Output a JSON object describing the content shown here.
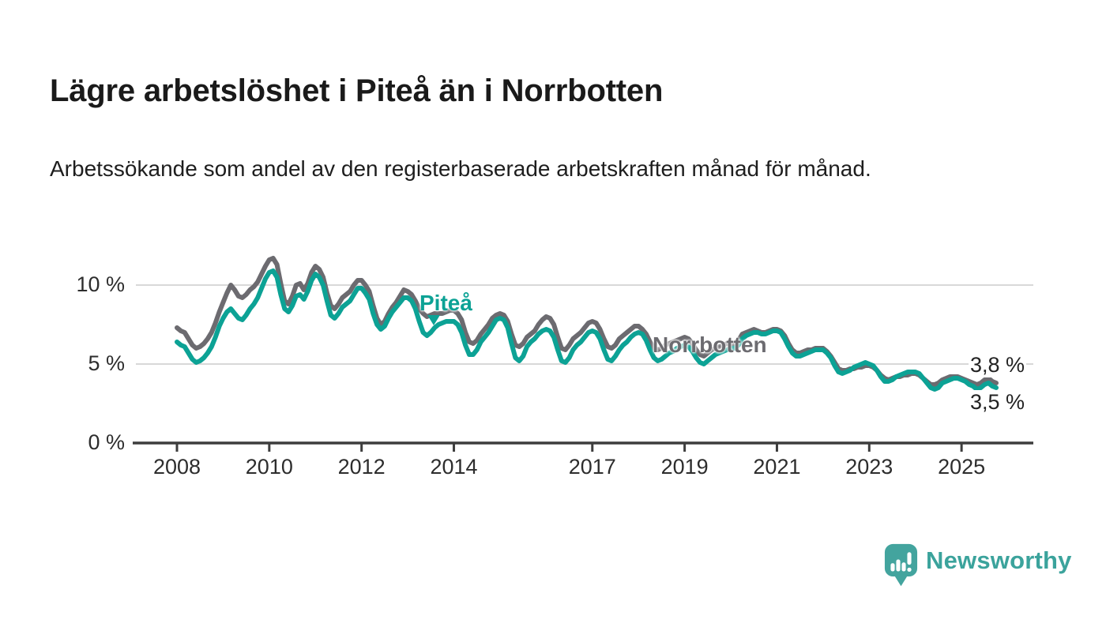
{
  "title": "Lägre arbetslöshet i Piteå än i Norrbotten",
  "subtitle": "Arbetssökande som andel av den registerbaserade arbetskraften månad för månad.",
  "annotations": {
    "pitea_label": "Piteå",
    "norrbotten_label": "Norrbotten",
    "end_label_norrbotten": "3,8 %",
    "end_label_pitea": "3,5 %"
  },
  "footer": {
    "brand": "Newsworthy"
  },
  "colors": {
    "pitea": "#0ca295",
    "norrbotten": "#6c6b70",
    "gridline": "#d8d8d8",
    "axis": "#3d3d3d",
    "logo": "#43a49e"
  },
  "chart_data": {
    "type": "line",
    "title": "Lägre arbetslöshet i Piteå än i Norrbotten",
    "xlabel": "",
    "ylabel": "Arbetssökande som andel av den registerbaserade arbetskraften",
    "unit": "%",
    "frequency": "monthly",
    "x_start": "2008-01",
    "x_end": "2025-10",
    "ylim": [
      0,
      12.5
    ],
    "grid": "horizontal",
    "legend_position": "inline-labels",
    "y_axis": {
      "ticks": [
        {
          "label": "0 %",
          "value": 0
        },
        {
          "label": "5 %",
          "value": 5
        },
        {
          "label": "10 %",
          "value": 10
        }
      ]
    },
    "x_axis": {
      "tick_years": [
        2008,
        2010,
        2012,
        2014,
        2017,
        2019,
        2021,
        2023,
        2025
      ],
      "tick_labels": [
        "2008",
        "2010",
        "2012",
        "2014",
        "2017",
        "2019",
        "2021",
        "2023",
        "2025"
      ]
    },
    "series": [
      {
        "name": "Norrbotten",
        "color": "#6c6b70",
        "end_value_label": "3,8 %",
        "values": [
          7.3,
          7.1,
          7.0,
          6.6,
          6.2,
          6.0,
          6.1,
          6.3,
          6.6,
          7.0,
          7.6,
          8.3,
          8.9,
          9.5,
          10.0,
          9.7,
          9.3,
          9.2,
          9.4,
          9.7,
          9.9,
          10.2,
          10.7,
          11.2,
          11.6,
          11.7,
          11.3,
          10.1,
          9.0,
          8.8,
          9.3,
          10.0,
          10.1,
          9.7,
          10.1,
          10.8,
          11.2,
          11.0,
          10.5,
          9.5,
          8.7,
          8.5,
          8.8,
          9.2,
          9.4,
          9.6,
          10.0,
          10.3,
          10.3,
          10.0,
          9.6,
          8.7,
          7.9,
          7.5,
          7.7,
          8.2,
          8.6,
          8.9,
          9.3,
          9.7,
          9.6,
          9.4,
          9.0,
          8.5,
          8.2,
          8.0,
          8.1,
          8.2,
          8.2,
          8.2,
          8.3,
          8.4,
          8.4,
          8.2,
          7.8,
          7.0,
          6.4,
          6.3,
          6.5,
          6.9,
          7.2,
          7.5,
          7.9,
          8.1,
          8.2,
          8.1,
          7.7,
          6.9,
          6.2,
          6.1,
          6.3,
          6.7,
          6.9,
          7.1,
          7.5,
          7.8,
          8.0,
          7.9,
          7.5,
          6.7,
          6.0,
          5.9,
          6.2,
          6.6,
          6.8,
          7.0,
          7.3,
          7.6,
          7.7,
          7.6,
          7.2,
          6.6,
          6.1,
          6.0,
          6.2,
          6.6,
          6.8,
          7.0,
          7.2,
          7.4,
          7.4,
          7.2,
          6.9,
          6.4,
          6.0,
          5.9,
          6.0,
          6.2,
          6.3,
          6.4,
          6.5,
          6.6,
          6.7,
          6.6,
          6.3,
          5.9,
          5.6,
          5.5,
          5.7,
          5.9,
          6.0,
          6.1,
          6.2,
          6.3,
          6.3,
          6.3,
          6.5,
          6.9,
          7.0,
          7.1,
          7.2,
          7.1,
          7.0,
          7.0,
          7.1,
          7.2,
          7.2,
          7.1,
          6.8,
          6.3,
          5.9,
          5.7,
          5.7,
          5.8,
          5.9,
          5.9,
          6.0,
          6.0,
          6.0,
          5.8,
          5.5,
          5.1,
          4.7,
          4.6,
          4.6,
          4.7,
          4.7,
          4.8,
          4.8,
          4.9,
          4.9,
          4.8,
          4.6,
          4.3,
          4.1,
          4.0,
          4.1,
          4.2,
          4.2,
          4.3,
          4.3,
          4.4,
          4.4,
          4.3,
          4.1,
          3.9,
          3.7,
          3.7,
          3.8,
          4.0,
          4.1,
          4.2,
          4.2,
          4.2,
          4.1,
          4.0,
          3.9,
          3.8,
          3.7,
          3.8,
          4.0,
          4.1,
          3.9,
          3.8
        ]
      },
      {
        "name": "Piteå",
        "color": "#0ca295",
        "end_value_label": "3,5 %",
        "values": [
          6.4,
          6.2,
          6.1,
          5.7,
          5.3,
          5.1,
          5.2,
          5.4,
          5.7,
          6.1,
          6.7,
          7.4,
          7.9,
          8.3,
          8.5,
          8.2,
          7.9,
          7.8,
          8.1,
          8.5,
          8.8,
          9.2,
          9.8,
          10.4,
          10.8,
          10.9,
          10.5,
          9.4,
          8.5,
          8.3,
          8.7,
          9.3,
          9.4,
          9.1,
          9.6,
          10.3,
          10.7,
          10.5,
          10.0,
          9.0,
          8.1,
          7.9,
          8.2,
          8.6,
          8.8,
          9.0,
          9.4,
          9.8,
          9.8,
          9.5,
          9.1,
          8.2,
          7.5,
          7.2,
          7.4,
          7.9,
          8.3,
          8.6,
          8.9,
          9.2,
          9.2,
          9.0,
          8.5,
          7.7,
          7.0,
          6.8,
          7.0,
          7.3,
          7.5,
          7.6,
          7.7,
          7.7,
          7.7,
          7.5,
          7.0,
          6.2,
          5.6,
          5.6,
          5.9,
          6.4,
          6.7,
          7.0,
          7.4,
          7.8,
          7.9,
          7.8,
          7.3,
          6.3,
          5.4,
          5.2,
          5.5,
          6.1,
          6.4,
          6.6,
          6.9,
          7.1,
          7.2,
          7.1,
          6.7,
          5.9,
          5.2,
          5.1,
          5.4,
          5.9,
          6.2,
          6.4,
          6.7,
          7.0,
          7.1,
          7.0,
          6.6,
          5.9,
          5.3,
          5.2,
          5.5,
          5.9,
          6.2,
          6.4,
          6.7,
          6.9,
          7.0,
          6.9,
          6.5,
          5.9,
          5.4,
          5.2,
          5.3,
          5.5,
          5.7,
          5.8,
          6.0,
          6.1,
          6.2,
          6.1,
          5.8,
          5.4,
          5.1,
          5.0,
          5.2,
          5.4,
          5.6,
          5.7,
          5.8,
          5.9,
          6.0,
          6.0,
          6.2,
          6.6,
          6.8,
          6.9,
          7.0,
          7.0,
          6.9,
          6.9,
          7.0,
          7.1,
          7.1,
          7.0,
          6.6,
          6.1,
          5.7,
          5.5,
          5.5,
          5.6,
          5.7,
          5.8,
          5.9,
          5.9,
          5.9,
          5.7,
          5.4,
          4.9,
          4.5,
          4.4,
          4.5,
          4.6,
          4.8,
          4.9,
          5.0,
          5.1,
          5.0,
          4.9,
          4.6,
          4.2,
          3.9,
          3.9,
          4.0,
          4.2,
          4.3,
          4.4,
          4.5,
          4.5,
          4.5,
          4.4,
          4.1,
          3.8,
          3.5,
          3.4,
          3.5,
          3.8,
          3.9,
          4.0,
          4.1,
          4.1,
          4.0,
          3.9,
          3.7,
          3.6,
          3.4,
          3.5,
          3.7,
          3.8,
          3.6,
          3.5
        ]
      }
    ]
  }
}
